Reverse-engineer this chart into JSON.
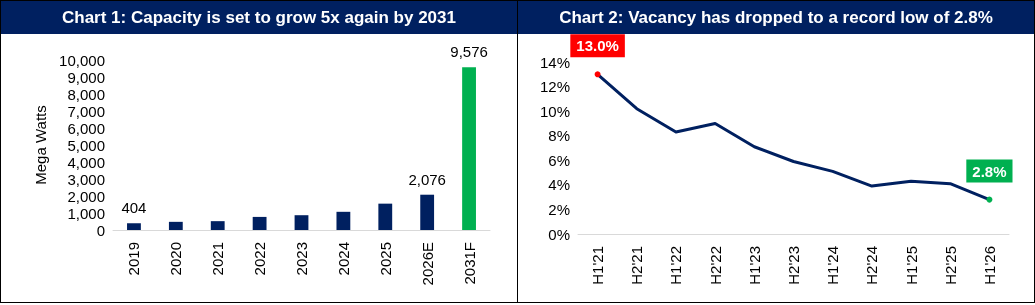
{
  "chart_data": [
    {
      "type": "bar",
      "title": "Chart 1: Capacity is set to grow 5x again by 2031",
      "ylabel": "Mega Watts",
      "categories": [
        "2019",
        "2020",
        "2021",
        "2022",
        "2023",
        "2024",
        "2025",
        "2026E",
        "2031F"
      ],
      "series": [
        {
          "values": [
            404,
            480,
            520,
            770,
            870,
            1070,
            1550,
            2076,
            9576
          ],
          "colors": [
            "#002060",
            "#002060",
            "#002060",
            "#002060",
            "#002060",
            "#002060",
            "#002060",
            "#002060",
            "#00b050"
          ],
          "value_labels": [
            "404",
            null,
            null,
            null,
            null,
            null,
            null,
            "2,076",
            "9,576"
          ]
        }
      ],
      "ylim": [
        0,
        10000
      ],
      "yticks": [
        {
          "value": 0,
          "label": "0"
        },
        {
          "value": 1000,
          "label": "1,000"
        },
        {
          "value": 2000,
          "label": "2,000"
        },
        {
          "value": 3000,
          "label": "3,000"
        },
        {
          "value": 4000,
          "label": "4,000"
        },
        {
          "value": 5000,
          "label": "5,000"
        },
        {
          "value": 6000,
          "label": "6,000"
        },
        {
          "value": 7000,
          "label": "7,000"
        },
        {
          "value": 8000,
          "label": "8,000"
        },
        {
          "value": 9000,
          "label": "9,000"
        },
        {
          "value": 10000,
          "label": "10,000"
        }
      ],
      "grid": false
    },
    {
      "type": "line",
      "title": "Chart 2: Vacancy has dropped to a record low of 2.8%",
      "categories": [
        "H1'21",
        "H2'21",
        "H1'22",
        "H2'22",
        "H1'23",
        "H2'23",
        "H1'24",
        "H2'24",
        "H1'25",
        "H2'25",
        "H1'26"
      ],
      "series": [
        {
          "color": "#002060",
          "values": [
            13.0,
            10.2,
            8.3,
            9.0,
            7.1,
            5.9,
            5.1,
            3.9,
            4.3,
            4.1,
            2.8
          ]
        },
        {
          "type": "scatter",
          "x": [
            "H1'21",
            "H1'26"
          ],
          "values": [
            13.0,
            2.8
          ],
          "colors": [
            "#ff0000",
            "#00b050"
          ],
          "value_labels": [
            "13.0%",
            "2.8%"
          ]
        }
      ],
      "ylim": [
        0,
        14
      ],
      "yticks": [
        {
          "value": 0,
          "label": "0%"
        },
        {
          "value": 2,
          "label": "2%"
        },
        {
          "value": 4,
          "label": "4%"
        },
        {
          "value": 6,
          "label": "6%"
        },
        {
          "value": 8,
          "label": "8%"
        },
        {
          "value": 10,
          "label": "10%"
        },
        {
          "value": 12,
          "label": "12%"
        },
        {
          "value": 14,
          "label": "14%"
        }
      ],
      "grid": false,
      "marker": "none",
      "line_style": "solid"
    }
  ]
}
